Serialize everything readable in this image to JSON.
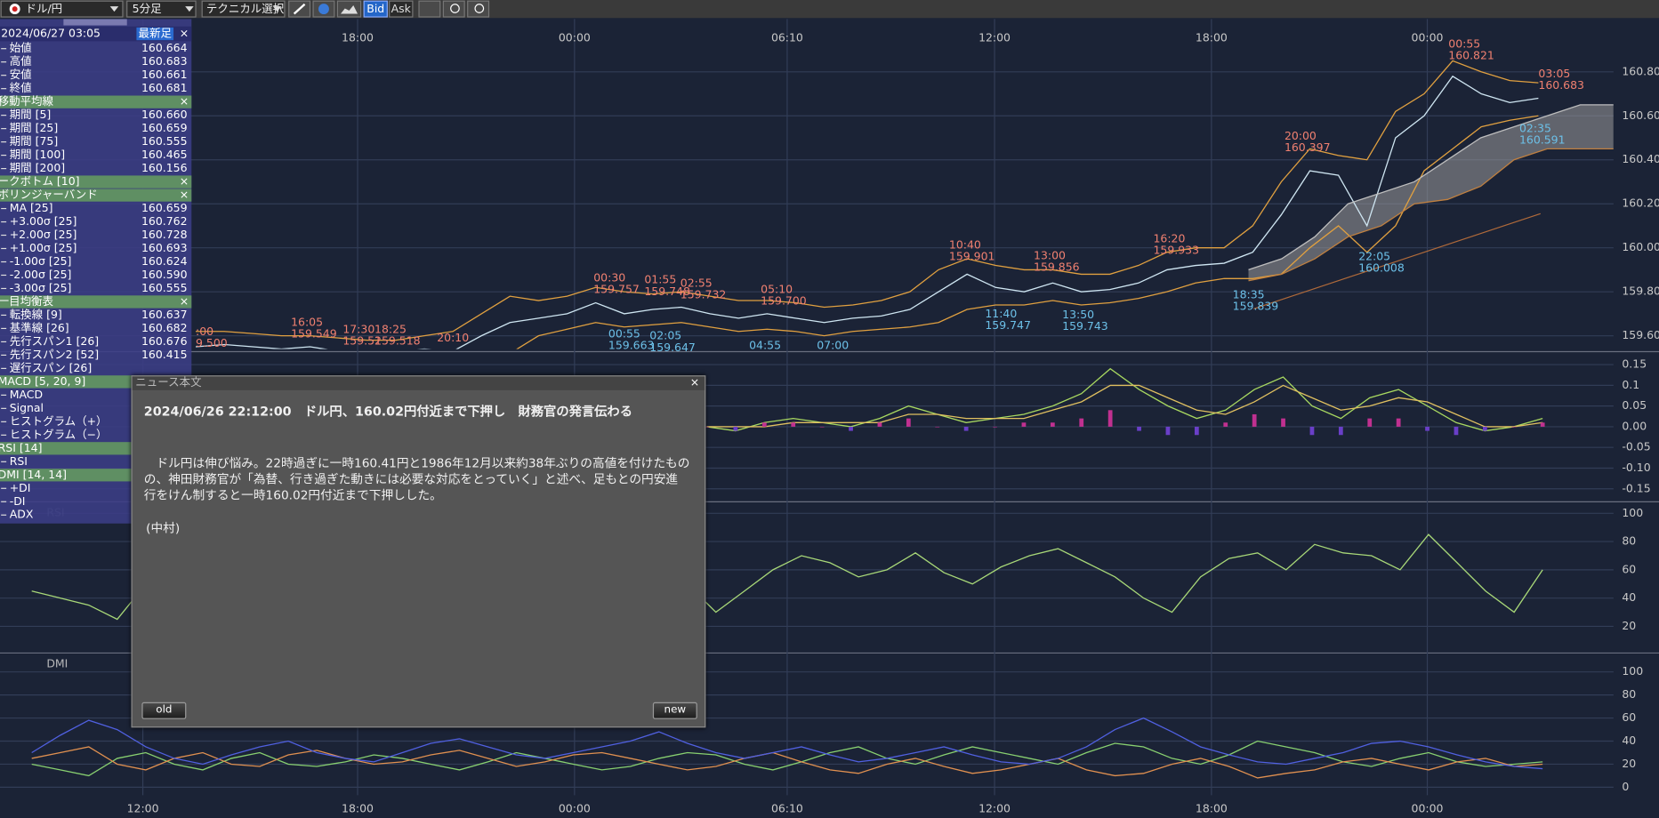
{
  "toolbar": {
    "pair": "ドル/円",
    "interval": "5分足",
    "technical": "テクニカル選択",
    "bid": "Bid",
    "ask": "Ask"
  },
  "time_axis": {
    "top": [
      "18:00",
      "00:00",
      "06:10",
      "12:00",
      "18:00",
      "00:00"
    ],
    "bottom": [
      "12:00",
      "18:00",
      "00:00",
      "06:10",
      "12:00",
      "18:00",
      "00:00"
    ]
  },
  "info_panel": {
    "datetime": "2024/06/27 03:05",
    "latest": "最新足",
    "close": "×",
    "rows": [
      {
        "label": "始値",
        "value": "160.664"
      },
      {
        "label": "高値",
        "value": "160.683"
      },
      {
        "label": "安値",
        "value": "160.661"
      },
      {
        "label": "終値",
        "value": "160.681"
      },
      {
        "section": "移動平均線",
        "close": "×"
      },
      {
        "label": "期間 [5]",
        "value": "160.660"
      },
      {
        "label": "期間 [25]",
        "value": "160.659"
      },
      {
        "label": "期間 [75]",
        "value": "160.555"
      },
      {
        "label": "期間 [100]",
        "value": "160.465"
      },
      {
        "label": "期間 [200]",
        "value": "160.156"
      },
      {
        "section": "ークボトム [10]",
        "close": "×"
      },
      {
        "section": "ボリンジャーバンド",
        "close": "×"
      },
      {
        "label": "MA [25]",
        "value": "160.659"
      },
      {
        "label": "+3.00σ [25]",
        "value": "160.762"
      },
      {
        "label": "+2.00σ [25]",
        "value": "160.728"
      },
      {
        "label": "+1.00σ [25]",
        "value": "160.693"
      },
      {
        "label": "-1.00σ [25]",
        "value": "160.624"
      },
      {
        "label": "-2.00σ [25]",
        "value": "160.590"
      },
      {
        "label": "-3.00σ [25]",
        "value": "160.555"
      },
      {
        "section": "一目均衡表",
        "close": "×"
      },
      {
        "label": "転換線 [9]",
        "value": "160.637"
      },
      {
        "label": "基準線 [26]",
        "value": "160.682"
      },
      {
        "label": "先行スパン1 [26]",
        "value": "160.676"
      },
      {
        "label": "先行スパン2 [52]",
        "value": "160.415"
      },
      {
        "label": "遅行スパン [26]"
      },
      {
        "section": "MACD [5, 20, 9]"
      },
      {
        "label": "MACD"
      },
      {
        "label": "Signal"
      },
      {
        "label": "ヒストグラム（+）"
      },
      {
        "label": "ヒストグラム（−）"
      },
      {
        "section": "RSI [14]"
      },
      {
        "label": "RSI"
      },
      {
        "section": "DMI [14, 14]"
      },
      {
        "label": "+DI"
      },
      {
        "label": "-DI"
      },
      {
        "label": "ADX"
      }
    ]
  },
  "chart_data": [
    {
      "type": "line",
      "ylim": [
        159.54,
        161.04
      ],
      "yticks": [
        {
          "value": 159.6,
          "label": "159.60"
        },
        {
          "value": 159.8,
          "label": "159.80"
        },
        {
          "value": 160,
          "label": "160.00"
        },
        {
          "value": 160.2,
          "label": "160.20"
        },
        {
          "value": 160.4,
          "label": "160.40"
        },
        {
          "value": 160.6,
          "label": "160.60"
        },
        {
          "value": 160.8,
          "label": "160.80"
        }
      ],
      "series": [
        {
          "color": "#cfe6f2",
          "values": [
            159.55,
            159.56,
            159.55,
            159.54,
            159.55,
            159.53,
            159.52,
            159.53,
            159.54,
            159.53,
            159.6,
            159.66,
            159.68,
            159.7,
            159.75,
            159.7,
            159.72,
            159.73,
            159.7,
            159.68,
            159.7,
            159.68,
            159.66,
            159.68,
            159.69,
            159.72,
            159.8,
            159.88,
            159.82,
            159.8,
            159.84,
            159.8,
            159.81,
            159.84,
            159.9,
            159.92,
            159.93,
            159.98,
            160.15,
            160.35,
            160.33,
            160.1,
            160.5,
            160.6,
            160.78,
            160.7,
            160.66,
            160.68
          ]
        },
        {
          "color": "#e0a040",
          "values": [
            159.62,
            159.62,
            159.61,
            159.6,
            159.6,
            159.59,
            159.58,
            159.58,
            159.6,
            159.62,
            159.7,
            159.78,
            159.76,
            159.78,
            159.82,
            159.8,
            159.79,
            159.8,
            159.78,
            159.76,
            159.76,
            159.75,
            159.73,
            159.74,
            159.76,
            159.8,
            159.9,
            159.95,
            159.92,
            159.9,
            159.9,
            159.88,
            159.88,
            159.92,
            159.98,
            160.0,
            160.0,
            160.1,
            160.3,
            160.45,
            160.42,
            160.4,
            160.62,
            160.7,
            160.85,
            160.8,
            160.76,
            160.75
          ]
        },
        {
          "color": "#e0a040",
          "values": [
            159.5,
            159.5,
            159.5,
            159.49,
            159.49,
            159.48,
            159.47,
            159.48,
            159.48,
            159.46,
            159.45,
            159.52,
            159.6,
            159.63,
            159.66,
            159.64,
            159.65,
            159.66,
            159.64,
            159.62,
            159.63,
            159.62,
            159.6,
            159.62,
            159.63,
            159.64,
            159.66,
            159.72,
            159.74,
            159.74,
            159.76,
            159.74,
            159.75,
            159.77,
            159.8,
            159.84,
            159.86,
            159.86,
            159.88,
            160.0,
            160.1,
            159.98,
            160.1,
            160.35,
            160.45,
            160.55,
            160.58,
            160.6
          ]
        },
        {
          "color": "#bdbdbd",
          "values": [
            159.9,
            159.95,
            160.05,
            160.2,
            160.25,
            160.3,
            160.4,
            160.5,
            160.55,
            160.6,
            160.65,
            160.65
          ]
        },
        {
          "color": "#c08040",
          "values": [
            159.85,
            159.88,
            159.95,
            160.05,
            160.1,
            160.2,
            160.22,
            160.28,
            160.4,
            160.45,
            160.45,
            160.45
          ]
        }
      ],
      "annotations": [
        {
          "time": ":00",
          "price": "9.500",
          "color": "#f08070"
        },
        {
          "time": "16:05",
          "price": "159.549",
          "color": "#f08070"
        },
        {
          "time": "17:30",
          "price": "159.52",
          "color": "#f08070"
        },
        {
          "time": "18:25",
          "price": "159.518",
          "color": "#f08070"
        },
        {
          "time": "20:10",
          "color": "#f08070"
        },
        {
          "time": "00:30",
          "price": "159.757",
          "color": "#f08070"
        },
        {
          "time": "01:55",
          "price": "159.748",
          "color": "#f08070"
        },
        {
          "time": "02:55",
          "price": "159.732",
          "color": "#f08070"
        },
        {
          "time": "05:10",
          "price": "159.700",
          "color": "#f08070"
        },
        {
          "time": "10:40",
          "price": "159.901",
          "color": "#f08070"
        },
        {
          "time": "13:00",
          "price": "159.856",
          "color": "#f08070"
        },
        {
          "time": "16:20",
          "price": "159.933",
          "color": "#f08070"
        },
        {
          "time": "20:00",
          "price": "160.397",
          "color": "#f08070"
        },
        {
          "time": "00:55",
          "price": "160.821",
          "color": "#f08070"
        },
        {
          "time": "03:05",
          "price": "160.683",
          "color": "#f08070"
        },
        {
          "time": "00:55",
          "price": "159.663",
          "color": "#6cc0e8"
        },
        {
          "time": "02:05",
          "price": "159.647",
          "color": "#6cc0e8"
        },
        {
          "time": "04:55",
          "color": "#6cc0e8"
        },
        {
          "time": "07:00",
          "color": "#6cc0e8"
        },
        {
          "time": "11:40",
          "price": "159.747",
          "color": "#6cc0e8"
        },
        {
          "time": "13:50",
          "price": "159.743",
          "color": "#6cc0e8"
        },
        {
          "time": "18:35",
          "price": "159.839",
          "color": "#6cc0e8"
        },
        {
          "time": "22:05",
          "price": "160.008",
          "color": "#6cc0e8"
        },
        {
          "time": "02:35",
          "price": "160.591",
          "color": "#6cc0e8"
        }
      ]
    },
    {
      "type": "line",
      "ylim": [
        -0.175,
        0.175
      ],
      "yticks": [
        0.15,
        0.1,
        0.05,
        {
          "value": 0,
          "label": "0.00"
        },
        -0.05,
        {
          "value": -0.1,
          "label": "-0.10"
        },
        -0.15
      ],
      "series": [
        {
          "color": "#a8d860",
          "values": [
            0,
            -0.01,
            0.01,
            0.02,
            0.01,
            0,
            0.02,
            0.05,
            0.03,
            0.01,
            0.02,
            0.03,
            0.05,
            0.08,
            0.14,
            0.09,
            0.05,
            0.02,
            0.04,
            0.09,
            0.12,
            0.05,
            0.02,
            0.07,
            0.09,
            0.05,
            0.01,
            -0.01,
            0,
            0.02
          ]
        },
        {
          "color": "#e0c060",
          "values": [
            0,
            0,
            0,
            0.01,
            0.01,
            0.01,
            0.01,
            0.03,
            0.03,
            0.02,
            0.02,
            0.02,
            0.04,
            0.06,
            0.1,
            0.1,
            0.07,
            0.04,
            0.03,
            0.06,
            0.1,
            0.07,
            0.04,
            0.05,
            0.07,
            0.06,
            0.03,
            0,
            0,
            0.01
          ]
        },
        {
          "type": "bar",
          "color": "#c03090",
          "negative_color": "#6a3fc8",
          "values": [
            0,
            -0.01,
            0.01,
            0.01,
            0,
            -0.01,
            0.01,
            0.02,
            0,
            -0.01,
            0,
            0.01,
            0.01,
            0.02,
            0.04,
            -0.01,
            -0.02,
            -0.02,
            0.01,
            0.03,
            0.02,
            -0.02,
            -0.02,
            0.02,
            0.02,
            -0.01,
            -0.02,
            -0.01,
            0,
            0.01
          ]
        }
      ]
    },
    {
      "type": "line",
      "title": "RSI",
      "ylim": [
        3,
        107
      ],
      "yticks": [
        100,
        80,
        60,
        40,
        20
      ],
      "series": [
        {
          "color": "#a8d878",
          "values": [
            45,
            40,
            35,
            25,
            50,
            65,
            55,
            50,
            45,
            48,
            55,
            60,
            52,
            45,
            50,
            55,
            58,
            50,
            45,
            40,
            48,
            55,
            60,
            50,
            30,
            45,
            60,
            70,
            65,
            55,
            60,
            72,
            58,
            50,
            62,
            70,
            75,
            65,
            55,
            40,
            30,
            55,
            68,
            72,
            60,
            78,
            72,
            70,
            60,
            85,
            65,
            45,
            30,
            60
          ]
        }
      ]
    },
    {
      "type": "line",
      "title": "DMI",
      "ylim": [
        -7,
        115
      ],
      "yticks": [
        100,
        80,
        60,
        40,
        20,
        0
      ],
      "series": [
        {
          "color": "#88d070",
          "values": [
            20,
            15,
            10,
            25,
            30,
            20,
            15,
            25,
            30,
            20,
            18,
            22,
            28,
            25,
            20,
            15,
            22,
            30,
            25,
            20,
            15,
            18,
            25,
            30,
            28,
            20,
            15,
            22,
            30,
            35,
            25,
            20,
            28,
            35,
            30,
            25,
            20,
            30,
            38,
            35,
            25,
            20,
            28,
            40,
            35,
            30,
            22,
            18,
            25,
            30,
            22,
            18,
            20,
            22
          ]
        },
        {
          "color": "#e09050",
          "values": [
            25,
            30,
            35,
            20,
            15,
            25,
            30,
            20,
            18,
            28,
            32,
            25,
            20,
            22,
            28,
            32,
            25,
            18,
            22,
            28,
            30,
            25,
            20,
            15,
            18,
            25,
            30,
            22,
            15,
            12,
            20,
            25,
            18,
            12,
            15,
            20,
            25,
            15,
            10,
            12,
            20,
            25,
            18,
            8,
            12,
            15,
            22,
            25,
            20,
            15,
            22,
            25,
            18,
            20
          ]
        },
        {
          "color": "#5060e0",
          "values": [
            30,
            45,
            58,
            50,
            35,
            25,
            20,
            28,
            35,
            40,
            30,
            25,
            22,
            30,
            38,
            42,
            35,
            28,
            25,
            30,
            35,
            40,
            48,
            38,
            30,
            25,
            30,
            35,
            28,
            22,
            25,
            30,
            35,
            28,
            22,
            20,
            25,
            35,
            50,
            60,
            48,
            35,
            28,
            22,
            20,
            25,
            30,
            38,
            40,
            35,
            28,
            22,
            18,
            16
          ]
        }
      ]
    }
  ],
  "news": {
    "window_title": "ニュース本文",
    "close": "×",
    "headline": "2024/06/26 22:12:00　ドル円、160.02円付近まで下押し　財務官の発言伝わる",
    "body": [
      "　ドル円は伸び悩み。22時過ぎに一時160.41円と1986年12月以来約38年ぶりの高値を付けたもの",
      "の、神田財務官が「為替、行き過ぎた動きには必要な対応をとっていく」と述べ、足もとの円安進",
      "行をけん制すると一時160.02円付近まで下押しした。"
    ],
    "author": "(中村)",
    "prev": "old",
    "next": "new"
  }
}
